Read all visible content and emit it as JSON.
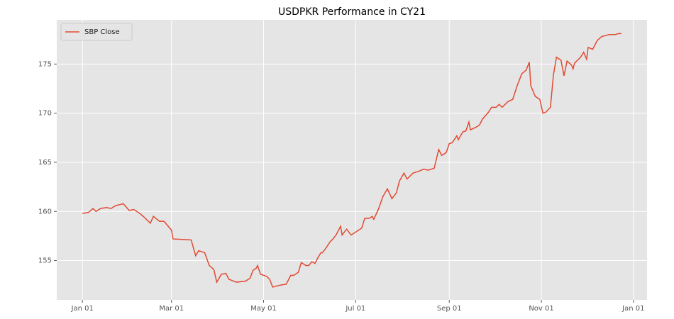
{
  "chart_data": {
    "type": "line",
    "title": "USDPKR Performance in CY21",
    "x": [
      "2021-01-01",
      "2021-01-05",
      "2021-01-08",
      "2021-01-10",
      "2021-01-13",
      "2021-01-17",
      "2021-01-20",
      "2021-01-23",
      "2021-01-26",
      "2021-01-28",
      "2021-02-01",
      "2021-02-04",
      "2021-02-08",
      "2021-02-11",
      "2021-02-15",
      "2021-02-17",
      "2021-02-21",
      "2021-02-24",
      "2021-03-01",
      "2021-03-02",
      "2021-03-14",
      "2021-03-17",
      "2021-03-19",
      "2021-03-23",
      "2021-03-26",
      "2021-03-29",
      "2021-03-31",
      "2021-04-03",
      "2021-04-06",
      "2021-04-08",
      "2021-04-13",
      "2021-04-19",
      "2021-04-22",
      "2021-04-24",
      "2021-04-26",
      "2021-04-27",
      "2021-04-29",
      "2021-05-03",
      "2021-05-05",
      "2021-05-07",
      "2021-05-12",
      "2021-05-16",
      "2021-05-19",
      "2021-05-21",
      "2021-05-24",
      "2021-05-26",
      "2021-05-29",
      "2021-05-31",
      "2021-06-02",
      "2021-06-04",
      "2021-06-06",
      "2021-06-08",
      "2021-06-09",
      "2021-06-11",
      "2021-06-14",
      "2021-06-16",
      "2021-06-18",
      "2021-06-21",
      "2021-06-22",
      "2021-06-25",
      "2021-06-28",
      "2021-07-02",
      "2021-07-05",
      "2021-07-07",
      "2021-07-10",
      "2021-07-12",
      "2021-07-13",
      "2021-07-16",
      "2021-07-19",
      "2021-07-22",
      "2021-07-25",
      "2021-07-28",
      "2021-07-30",
      "2021-08-02",
      "2021-08-04",
      "2021-08-08",
      "2021-08-12",
      "2021-08-15",
      "2021-08-18",
      "2021-08-22",
      "2021-08-25",
      "2021-08-27",
      "2021-08-30",
      "2021-09-01",
      "2021-09-03",
      "2021-09-06",
      "2021-09-07",
      "2021-09-10",
      "2021-09-12",
      "2021-09-14",
      "2021-09-15",
      "2021-09-19",
      "2021-09-21",
      "2021-09-23",
      "2021-09-27",
      "2021-09-29",
      "2021-10-02",
      "2021-10-04",
      "2021-10-06",
      "2021-10-10",
      "2021-10-13",
      "2021-10-16",
      "2021-10-19",
      "2021-10-22",
      "2021-10-24",
      "2021-10-25",
      "2021-10-28",
      "2021-10-31",
      "2021-11-02",
      "2021-11-04",
      "2021-11-07",
      "2021-11-09",
      "2021-11-11",
      "2021-11-14",
      "2021-11-16",
      "2021-11-18",
      "2021-11-21",
      "2021-11-22",
      "2021-11-23",
      "2021-11-27",
      "2021-11-29",
      "2021-12-01",
      "2021-12-02",
      "2021-12-05",
      "2021-12-08",
      "2021-12-11",
      "2021-12-16",
      "2021-12-20",
      "2021-12-22",
      "2021-12-24"
    ],
    "series": [
      {
        "name": "SBP Close",
        "color": "#e24a33",
        "values": [
          159.8,
          159.9,
          160.3,
          160.0,
          160.3,
          160.4,
          160.3,
          160.6,
          160.7,
          160.8,
          160.1,
          160.2,
          159.8,
          159.4,
          158.8,
          159.5,
          159.0,
          159.0,
          158.1,
          157.2,
          157.1,
          155.5,
          156.0,
          155.8,
          154.5,
          154.1,
          152.8,
          153.6,
          153.7,
          153.1,
          152.8,
          152.9,
          153.2,
          154.0,
          154.2,
          154.5,
          153.6,
          153.4,
          153.1,
          152.3,
          152.5,
          152.6,
          153.5,
          153.5,
          153.8,
          154.8,
          154.5,
          154.5,
          154.9,
          154.7,
          155.3,
          155.8,
          155.8,
          156.2,
          156.9,
          157.2,
          157.6,
          158.5,
          157.6,
          158.2,
          157.6,
          158.0,
          158.3,
          159.3,
          159.3,
          159.5,
          159.2,
          160.2,
          161.5,
          162.3,
          161.3,
          161.9,
          163.1,
          163.9,
          163.3,
          163.9,
          164.1,
          164.3,
          164.2,
          164.4,
          166.3,
          165.7,
          166.0,
          166.9,
          167.0,
          167.7,
          167.3,
          168.1,
          168.2,
          169.1,
          168.3,
          168.6,
          168.8,
          169.4,
          170.1,
          170.6,
          170.6,
          170.9,
          170.6,
          171.2,
          171.4,
          172.8,
          174.0,
          174.4,
          175.2,
          172.8,
          171.7,
          171.4,
          170.0,
          170.1,
          170.6,
          173.9,
          175.7,
          175.4,
          173.8,
          175.3,
          174.9,
          174.5,
          175.1,
          175.7,
          176.2,
          175.5,
          176.7,
          176.5,
          177.4,
          177.8,
          178.0,
          178.0,
          178.1,
          178.1
        ]
      }
    ],
    "xlim": [
      "2020-12-15",
      "2022-01-10"
    ],
    "xticks": [
      {
        "value": "2021-01-01",
        "label": "Jan 01"
      },
      {
        "value": "2021-03-01",
        "label": "Mar 01"
      },
      {
        "value": "2021-05-01",
        "label": "May 01"
      },
      {
        "value": "2021-07-01",
        "label": "Jul 01"
      },
      {
        "value": "2021-09-01",
        "label": "Sep 01"
      },
      {
        "value": "2021-11-01",
        "label": "Nov 01"
      },
      {
        "value": "2022-01-01",
        "label": "Jan 01"
      }
    ],
    "ylim": [
      151.0,
      179.5
    ],
    "yticks": [
      155,
      160,
      165,
      170,
      175
    ],
    "grid": true,
    "legend": "upper left"
  }
}
